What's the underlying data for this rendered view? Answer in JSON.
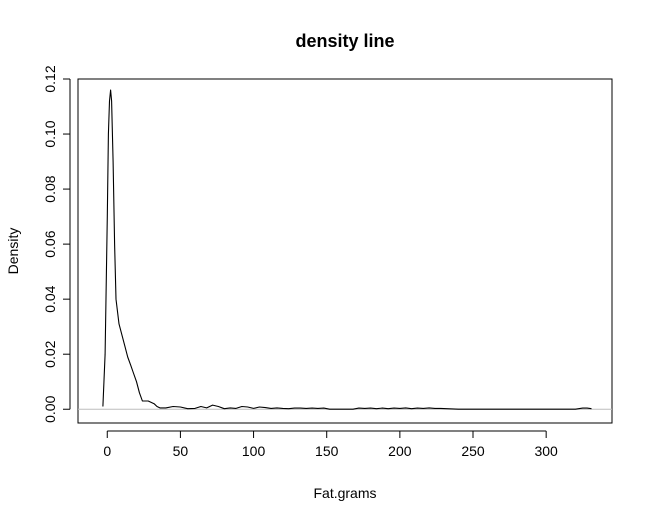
{
  "chart_data": {
    "type": "line",
    "title": "density line",
    "xlabel": "Fat.grams",
    "ylabel": "Density",
    "xlim": [
      -20,
      345
    ],
    "ylim": [
      -0.005,
      0.12
    ],
    "xticks": [
      0,
      50,
      100,
      150,
      200,
      250,
      300
    ],
    "xtick_labels": [
      "0",
      "50",
      "100",
      "150",
      "200",
      "250",
      "300"
    ],
    "yticks": [
      0.0,
      0.02,
      0.04,
      0.06,
      0.08,
      0.1,
      0.12
    ],
    "ytick_labels": [
      "0.00",
      "0.02",
      "0.04",
      "0.06",
      "0.08",
      "0.10",
      "0.12"
    ],
    "grid": false,
    "baseline": {
      "y": 0,
      "color": "#bebebe"
    },
    "series": [
      {
        "name": "density",
        "color": "#000000",
        "x": [
          -3,
          -1.5,
          0,
          0.8,
          1.5,
          2.3,
          3,
          4,
          5,
          6,
          8,
          10,
          12,
          14,
          16,
          18,
          20,
          22,
          24,
          28,
          32,
          34,
          36,
          40,
          45,
          50,
          55,
          60,
          64,
          68,
          72,
          76,
          80,
          84,
          88,
          92,
          96,
          100,
          104,
          108,
          112,
          116,
          120,
          124,
          128,
          132,
          136,
          140,
          144,
          148,
          152,
          160,
          168,
          172,
          176,
          180,
          184,
          188,
          192,
          196,
          200,
          204,
          208,
          212,
          216,
          220,
          224,
          228,
          232,
          240,
          260,
          280,
          300,
          320,
          325,
          328,
          331
        ],
        "y": [
          0.001,
          0.02,
          0.07,
          0.1,
          0.112,
          0.116,
          0.112,
          0.09,
          0.06,
          0.04,
          0.031,
          0.027,
          0.023,
          0.019,
          0.016,
          0.013,
          0.01,
          0.006,
          0.003,
          0.003,
          0.002,
          0.001,
          0.0005,
          0.0005,
          0.001,
          0.0008,
          0.0002,
          0.0003,
          0.001,
          0.0005,
          0.0015,
          0.001,
          0.0002,
          0.0005,
          0.0003,
          0.001,
          0.0008,
          0.0003,
          0.0008,
          0.0006,
          0.0003,
          0.0005,
          0.0003,
          0.0002,
          0.0004,
          0.0004,
          0.0003,
          0.0004,
          0.0003,
          0.0004,
          0.0,
          0.0,
          0.0,
          0.0004,
          0.0003,
          0.0004,
          0.0002,
          0.0004,
          0.0002,
          0.0004,
          0.0003,
          0.0005,
          0.0002,
          0.0004,
          0.0003,
          0.0005,
          0.0003,
          0.0003,
          0.0002,
          0.0,
          0.0,
          0.0,
          0.0,
          0.0,
          0.0004,
          0.0004,
          0.0002
        ]
      }
    ]
  }
}
